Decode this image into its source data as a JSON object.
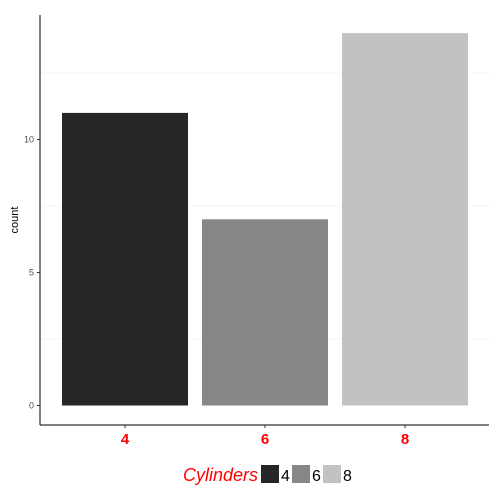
{
  "chart_data": {
    "type": "bar",
    "categories": [
      "4",
      "6",
      "8"
    ],
    "values": [
      11,
      7,
      14
    ],
    "colors": [
      "#262626",
      "#878787",
      "#c2c2c2"
    ],
    "xlabel": "",
    "ylabel": "count",
    "ylim": [
      0,
      15
    ],
    "y_ticks": [
      0,
      5,
      10
    ],
    "y_tick_labels": [
      "0",
      "5",
      "10"
    ],
    "grid": "light horizontal",
    "legend": {
      "title": "Cylinders",
      "position": "bottom",
      "entries": [
        "4",
        "6",
        "8"
      ]
    }
  }
}
